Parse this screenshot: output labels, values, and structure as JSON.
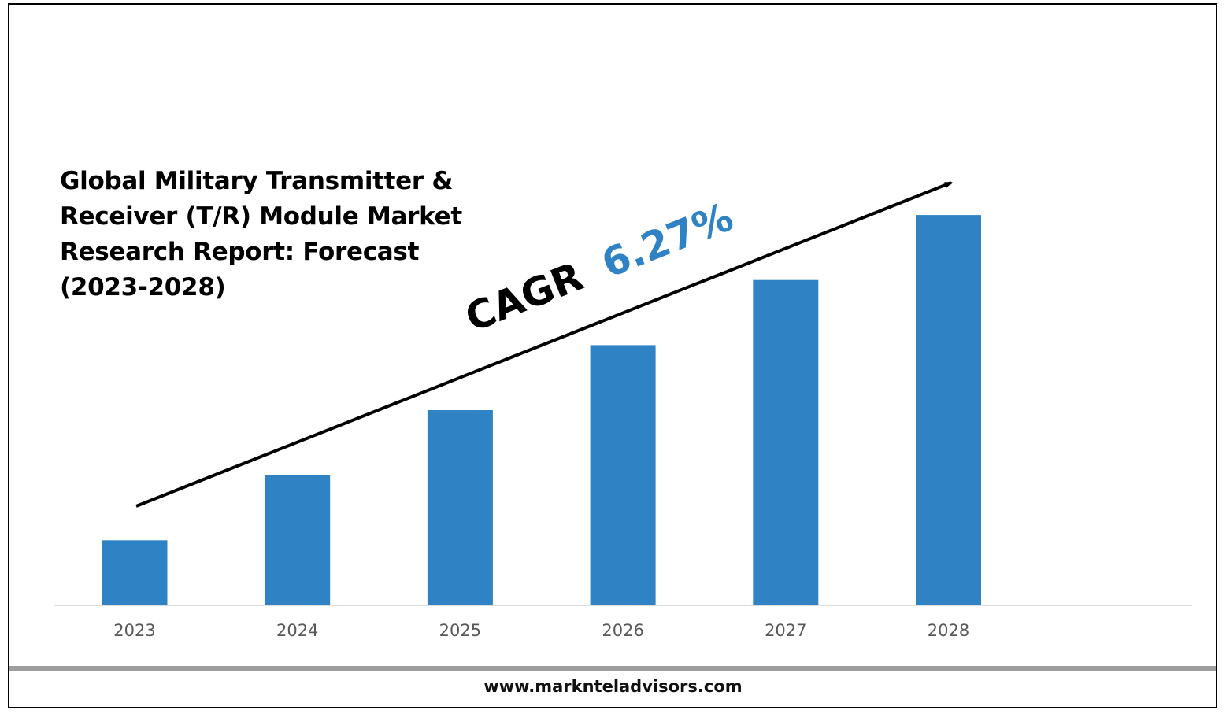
{
  "chart_data": {
    "type": "bar",
    "title": "Global Military Transmitter &\nReceiver (T/R) Module Market\nResearch Report: Forecast\n(2023-2028)",
    "categories": [
      "2023",
      "2024",
      "2025",
      "2026",
      "2027",
      "2028"
    ],
    "values": [
      1.0,
      2.0,
      3.0,
      4.0,
      5.0,
      6.0
    ],
    "ylim": [
      0,
      6.4
    ],
    "bar_color": "#2f83c5",
    "grid": false,
    "legend": "none",
    "annotation": {
      "label": "CAGR",
      "value": "6.27%",
      "label_color": "#000000",
      "value_color": "#2f83c5"
    }
  },
  "footer": {
    "url": "www.marknteladvisors.com"
  },
  "colors": {
    "axis": "#d0d0d0",
    "tick_text": "#595959",
    "footer_band": "#9e9e9e"
  }
}
